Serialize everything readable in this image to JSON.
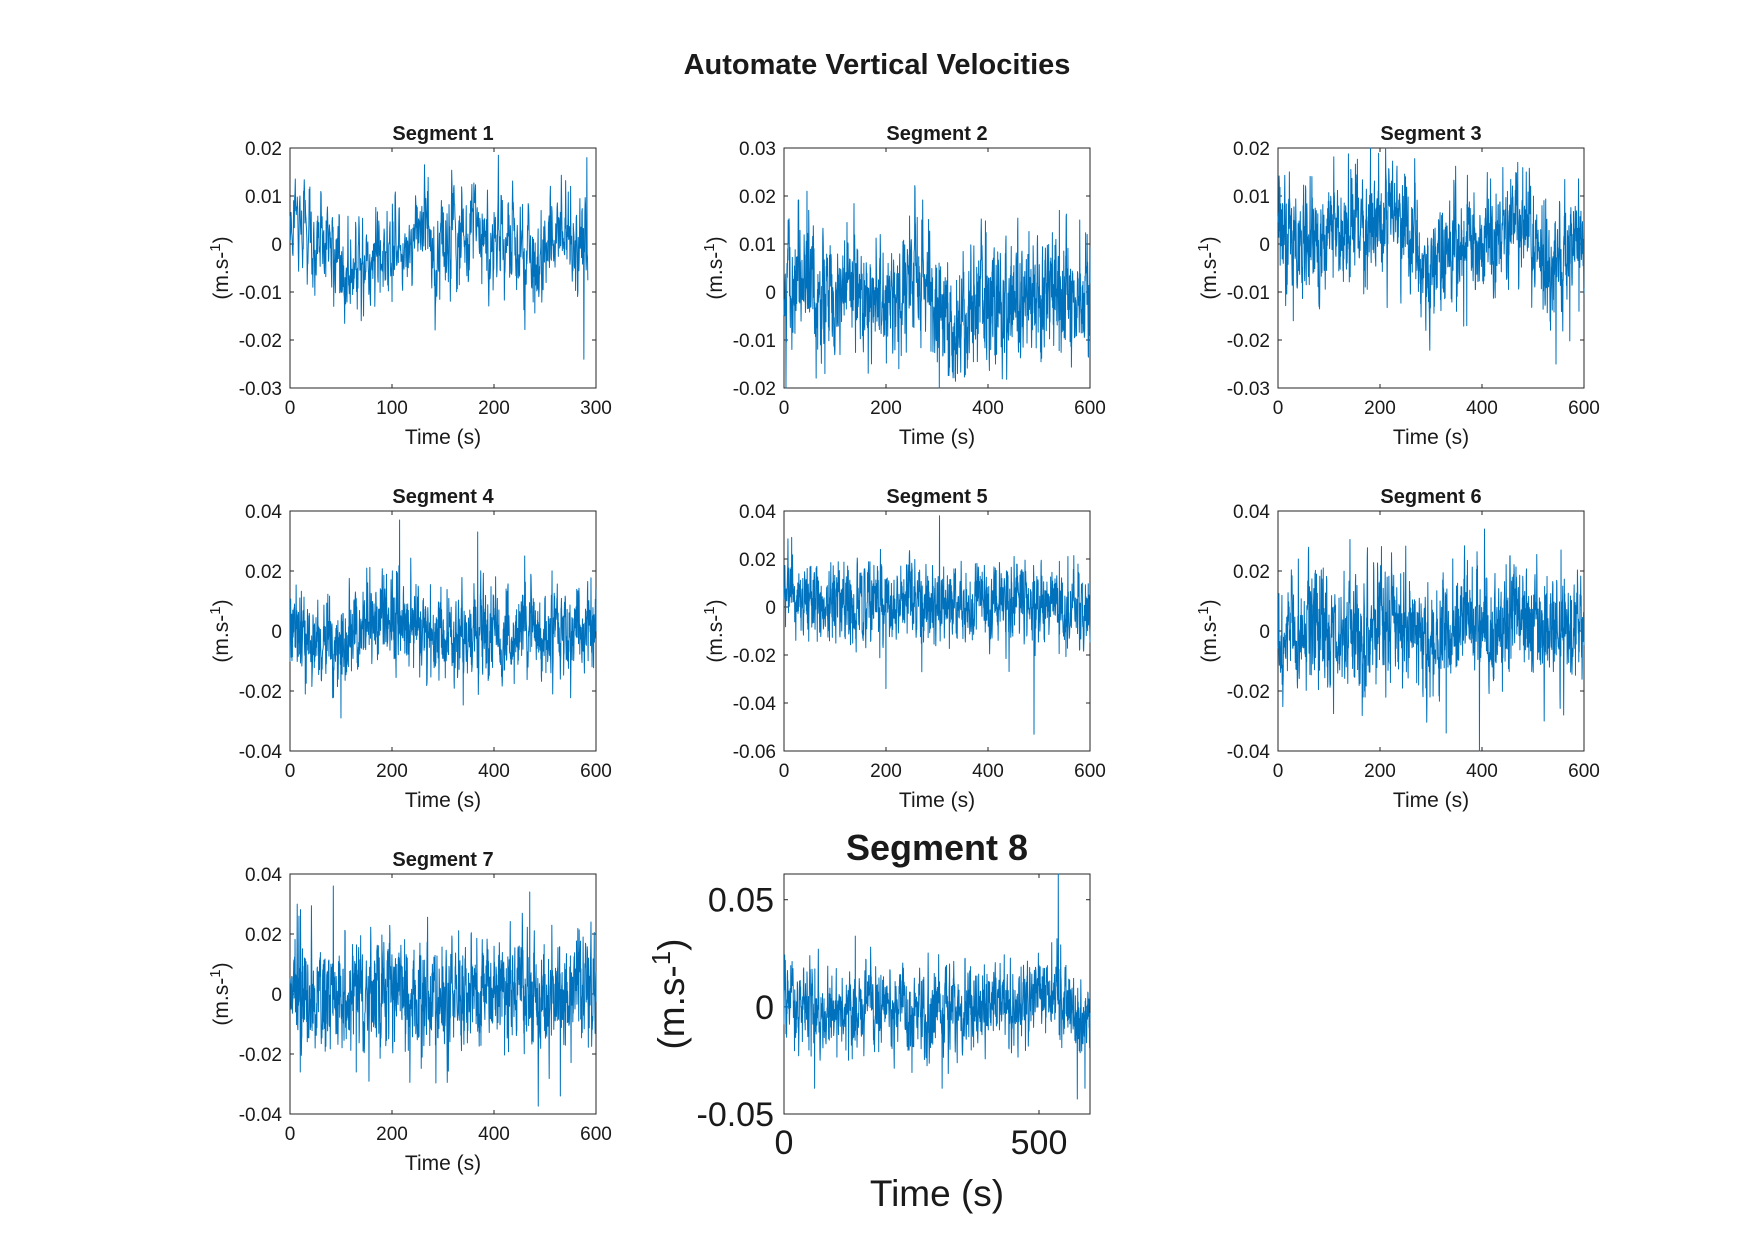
{
  "figure": {
    "title": "Automate Vertical Velocities"
  },
  "colors": {
    "line": "#0072BD",
    "axes": "#262626",
    "text": "#1a1a1a"
  },
  "chart_data": [
    {
      "type": "line",
      "title": "Segment 1",
      "xlabel": "Time (s)",
      "ylabel": "(m.s-1)",
      "xlim": [
        0,
        300
      ],
      "ylim": [
        -0.03,
        0.02
      ],
      "xticks": [
        "0",
        "100",
        "200",
        "300"
      ],
      "yticks": [
        "-0.03",
        "-0.02",
        "-0.01",
        "0",
        "0.01",
        "0.02"
      ],
      "series": [
        {
          "x_end": 292,
          "samples": 900,
          "values": [
            [
              0,
              0.005
            ],
            [
              20,
              0.004
            ],
            [
              40,
              0.001
            ],
            [
              50,
              -0.006
            ],
            [
              60,
              -0.009
            ],
            [
              80,
              -0.004
            ],
            [
              100,
              -0.003
            ],
            [
              115,
              -0.002
            ],
            [
              125,
              0.003
            ],
            [
              132,
              0.005
            ],
            [
              145,
              -0.007
            ],
            [
              160,
              0.002
            ],
            [
              180,
              0.004
            ],
            [
              200,
              0.001
            ],
            [
              215,
              0.003
            ],
            [
              230,
              -0.002
            ],
            [
              250,
              -0.003
            ],
            [
              265,
              0.003
            ],
            [
              280,
              -0.002
            ],
            [
              292,
              0.001
            ]
          ],
          "extremes": [
            [
              132,
              0.0165
            ],
            [
              43,
              -0.013
            ],
            [
              72,
              -0.015
            ],
            [
              288,
              -0.024
            ],
            [
              291,
              0.018
            ],
            [
              275,
              0.012
            ],
            [
              100,
              -0.012
            ]
          ],
          "noise": 0.0045
        }
      ]
    },
    {
      "type": "line",
      "title": "Segment 2",
      "xlabel": "Time (s)",
      "ylabel": "(m.s-1)",
      "xlim": [
        0,
        600
      ],
      "ylim": [
        -0.02,
        0.03
      ],
      "xticks": [
        "0",
        "200",
        "400",
        "600"
      ],
      "yticks": [
        "-0.02",
        "-0.01",
        "0",
        "0.01",
        "0.02",
        "0.03"
      ],
      "series": [
        {
          "x_end": 600,
          "samples": 1400,
          "values": [
            [
              0,
              -0.002
            ],
            [
              40,
              0.004
            ],
            [
              60,
              -0.002
            ],
            [
              100,
              -0.001
            ],
            [
              140,
              0.003
            ],
            [
              180,
              -0.003
            ],
            [
              220,
              -0.001
            ],
            [
              250,
              0.002
            ],
            [
              280,
              0.003
            ],
            [
              320,
              -0.005
            ],
            [
              340,
              -0.006
            ],
            [
              380,
              0.001
            ],
            [
              420,
              -0.002
            ],
            [
              460,
              -0.004
            ],
            [
              500,
              -0.002
            ],
            [
              540,
              0.002
            ],
            [
              570,
              -0.001
            ],
            [
              600,
              0.003
            ]
          ],
          "extremes": [
            [
              45,
              0.021
            ],
            [
              80,
              -0.017
            ],
            [
              340,
              -0.017
            ],
            [
              270,
              0.015
            ],
            [
              540,
              0.017
            ],
            [
              225,
              -0.016
            ],
            [
              580,
              0.015
            ]
          ],
          "noise": 0.0055
        }
      ]
    },
    {
      "type": "line",
      "title": "Segment 3",
      "xlabel": "Time (s)",
      "ylabel": "(m.s-1)",
      "xlim": [
        0,
        600
      ],
      "ylim": [
        -0.03,
        0.02
      ],
      "xticks": [
        "0",
        "200",
        "400",
        "600"
      ],
      "yticks": [
        "-0.03",
        "-0.02",
        "-0.01",
        "0",
        "0.01",
        "0.02"
      ],
      "series": [
        {
          "x_end": 600,
          "samples": 1400,
          "values": [
            [
              0,
              0.0
            ],
            [
              60,
              0.001
            ],
            [
              120,
              0.002
            ],
            [
              180,
              0.003
            ],
            [
              230,
              0.007
            ],
            [
              260,
              0.001
            ],
            [
              290,
              -0.006
            ],
            [
              320,
              -0.002
            ],
            [
              360,
              0.002
            ],
            [
              400,
              0.001
            ],
            [
              440,
              0.003
            ],
            [
              470,
              0.006
            ],
            [
              500,
              0.001
            ],
            [
              540,
              -0.005
            ],
            [
              570,
              -0.003
            ],
            [
              600,
              0.002
            ]
          ],
          "extremes": [
            [
              470,
              0.017
            ],
            [
              250,
              0.014
            ],
            [
              545,
              -0.025
            ],
            [
              290,
              -0.018
            ],
            [
              30,
              -0.016
            ],
            [
              370,
              -0.017
            ],
            [
              590,
              -0.014
            ]
          ],
          "noise": 0.005
        }
      ]
    },
    {
      "type": "line",
      "title": "Segment 4",
      "xlabel": "Time (s)",
      "ylabel": "(m.s-1)",
      "xlim": [
        0,
        600
      ],
      "ylim": [
        -0.04,
        0.04
      ],
      "xticks": [
        "0",
        "200",
        "400",
        "600"
      ],
      "yticks": [
        "-0.04",
        "-0.02",
        "0",
        "0.02",
        "0.04"
      ],
      "series": [
        {
          "x_end": 600,
          "samples": 1400,
          "values": [
            [
              0,
              0.0
            ],
            [
              50,
              -0.003
            ],
            [
              100,
              -0.004
            ],
            [
              150,
              0.002
            ],
            [
              200,
              0.005
            ],
            [
              230,
              0.004
            ],
            [
              280,
              0.0
            ],
            [
              330,
              -0.002
            ],
            [
              380,
              0.002
            ],
            [
              420,
              -0.003
            ],
            [
              460,
              0.003
            ],
            [
              500,
              -0.002
            ],
            [
              550,
              0.0
            ],
            [
              600,
              0.001
            ]
          ],
          "extremes": [
            [
              215,
              0.037
            ],
            [
              368,
              0.033
            ],
            [
              100,
              -0.029
            ],
            [
              460,
              0.025
            ],
            [
              515,
              -0.021
            ],
            [
              30,
              -0.021
            ]
          ],
          "noise": 0.0065
        }
      ]
    },
    {
      "type": "line",
      "title": "Segment 5",
      "xlabel": "Time (s)",
      "ylabel": "(m.s-1)",
      "xlim": [
        0,
        600
      ],
      "ylim": [
        -0.06,
        0.04
      ],
      "xticks": [
        "0",
        "200",
        "400",
        "600"
      ],
      "yticks": [
        "-0.06",
        "-0.04",
        "-0.02",
        "0",
        "0.02",
        "0.04"
      ],
      "series": [
        {
          "x_end": 600,
          "samples": 1400,
          "values": [
            [
              0,
              0.007
            ],
            [
              60,
              0.003
            ],
            [
              120,
              -0.001
            ],
            [
              200,
              0.003
            ],
            [
              260,
              0.001
            ],
            [
              320,
              -0.002
            ],
            [
              380,
              0.004
            ],
            [
              440,
              0.001
            ],
            [
              500,
              0.003
            ],
            [
              560,
              -0.003
            ],
            [
              600,
              0.0
            ]
          ],
          "extremes": [
            [
              305,
              0.038
            ],
            [
              490,
              -0.053
            ],
            [
              200,
              -0.034
            ],
            [
              15,
              0.029
            ],
            [
              270,
              -0.027
            ],
            [
              540,
              0.019
            ]
          ],
          "noise": 0.0075
        }
      ]
    },
    {
      "type": "line",
      "title": "Segment 6",
      "xlabel": "Time (s)",
      "ylabel": "(m.s-1)",
      "xlim": [
        0,
        600
      ],
      "ylim": [
        -0.04,
        0.04
      ],
      "xticks": [
        "0",
        "200",
        "400",
        "600"
      ],
      "yticks": [
        "-0.04",
        "-0.02",
        "0",
        "0.02",
        "0.04"
      ],
      "series": [
        {
          "x_end": 600,
          "samples": 1400,
          "values": [
            [
              0,
              0.0
            ],
            [
              60,
              -0.001
            ],
            [
              120,
              0.001
            ],
            [
              180,
              -0.001
            ],
            [
              240,
              0.002
            ],
            [
              300,
              -0.002
            ],
            [
              360,
              0.003
            ],
            [
              400,
              0.004
            ],
            [
              440,
              0.0
            ],
            [
              500,
              0.002
            ],
            [
              560,
              -0.002
            ],
            [
              600,
              0.001
            ]
          ],
          "extremes": [
            [
              395,
              -0.043
            ],
            [
              405,
              0.034
            ],
            [
              330,
              -0.034
            ],
            [
              40,
              0.024
            ],
            [
              555,
              0.027
            ],
            [
              560,
              -0.028
            ],
            [
              170,
              -0.02
            ]
          ],
          "noise": 0.0085
        }
      ]
    },
    {
      "type": "line",
      "title": "Segment 7",
      "xlabel": "Time (s)",
      "ylabel": "(m.s-1)",
      "xlim": [
        0,
        600
      ],
      "ylim": [
        -0.04,
        0.04
      ],
      "xticks": [
        "0",
        "200",
        "400",
        "600"
      ],
      "yticks": [
        "-0.04",
        "-0.02",
        "0",
        "0.02",
        "0.04"
      ],
      "series": [
        {
          "x_end": 600,
          "samples": 1400,
          "values": [
            [
              0,
              0.0
            ],
            [
              80,
              0.002
            ],
            [
              160,
              -0.001
            ],
            [
              240,
              0.001
            ],
            [
              320,
              -0.002
            ],
            [
              400,
              0.0
            ],
            [
              450,
              0.002
            ],
            [
              500,
              -0.001
            ],
            [
              540,
              0.001
            ],
            [
              600,
              0.002
            ]
          ],
          "extremes": [
            [
              85,
              0.036
            ],
            [
              530,
              -0.034
            ],
            [
              470,
              0.034
            ],
            [
              20,
              -0.026
            ],
            [
              590,
              0.024
            ],
            [
              130,
              -0.026
            ]
          ],
          "noise": 0.0085
        }
      ]
    },
    {
      "type": "line",
      "title": "Segment 8",
      "xlabel": "Time (s)",
      "ylabel": "(m.s-1)",
      "xlim": [
        0,
        600
      ],
      "ylim": [
        -0.05,
        0.062
      ],
      "xticks": [
        "0",
        "500"
      ],
      "ytick_values": [
        -0.05,
        0,
        0.05
      ],
      "xtick_values": [
        0,
        500
      ],
      "yticks": [
        "-0.05",
        "0",
        "0.05"
      ],
      "large": true,
      "series": [
        {
          "x_end": 600,
          "samples": 1400,
          "values": [
            [
              0,
              0.001
            ],
            [
              80,
              -0.002
            ],
            [
              160,
              0.002
            ],
            [
              240,
              -0.001
            ],
            [
              320,
              -0.002
            ],
            [
              400,
              0.001
            ],
            [
              480,
              0.002
            ],
            [
              520,
              0.005
            ],
            [
              540,
              0.01
            ],
            [
              560,
              0.001
            ],
            [
              600,
              -0.008
            ]
          ],
          "extremes": [
            [
              538,
              0.063
            ],
            [
              575,
              -0.043
            ],
            [
              590,
              -0.038
            ],
            [
              60,
              -0.038
            ],
            [
              140,
              0.033
            ],
            [
              310,
              -0.038
            ],
            [
              525,
              0.03
            ]
          ],
          "noise": 0.0085
        }
      ]
    }
  ]
}
